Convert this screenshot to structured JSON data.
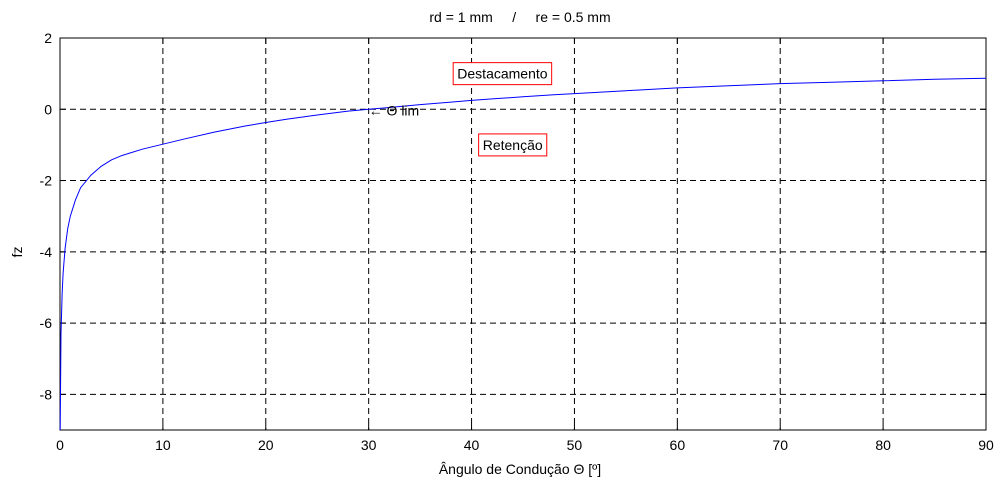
{
  "chart_data": {
    "type": "line",
    "title": "rd = 1 mm     /     re = 0.5 mm",
    "xlabel": "Ângulo de Condução Θ [º]",
    "ylabel": "fz",
    "xlim": [
      0,
      90
    ],
    "ylim": [
      -9,
      2
    ],
    "xticks": [
      0,
      10,
      20,
      30,
      40,
      50,
      60,
      70,
      80,
      90
    ],
    "yticks": [
      2,
      0,
      -2,
      -4,
      -6,
      -8
    ],
    "grid": true,
    "series": [
      {
        "color": "#0000ff",
        "x": [
          0.02,
          0.1,
          0.2,
          0.3,
          0.5,
          0.75,
          1,
          1.5,
          2,
          3,
          4,
          5,
          6,
          8,
          10,
          12,
          15,
          18,
          20,
          22,
          25,
          28,
          30,
          32,
          35,
          38,
          40,
          42,
          45,
          48,
          50,
          55,
          60,
          65,
          70,
          75,
          80,
          85,
          90
        ],
        "y": [
          -9.0,
          -6.3,
          -5.2,
          -4.6,
          -3.9,
          -3.35,
          -3.0,
          -2.55,
          -2.2,
          -1.85,
          -1.6,
          -1.42,
          -1.3,
          -1.12,
          -0.98,
          -0.84,
          -0.64,
          -0.47,
          -0.37,
          -0.28,
          -0.16,
          -0.05,
          0.0,
          0.05,
          0.13,
          0.2,
          0.25,
          0.29,
          0.35,
          0.41,
          0.44,
          0.52,
          0.6,
          0.66,
          0.72,
          0.76,
          0.8,
          0.84,
          0.87
        ]
      }
    ],
    "annotations": {
      "theta_lim": {
        "text": "← Θ lim",
        "x": 30,
        "y": 0
      },
      "boxes": [
        {
          "text": "Destacamento",
          "x": 43,
          "y": 1.0,
          "border": "#ff0000"
        },
        {
          "text": "Retenção",
          "x": 44,
          "y": -1.0,
          "border": "#ff0000"
        }
      ]
    }
  }
}
